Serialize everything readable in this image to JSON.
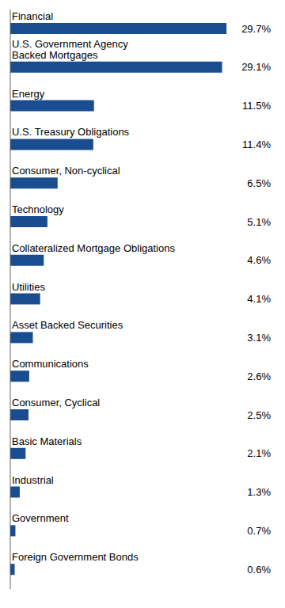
{
  "chart_data": {
    "type": "bar",
    "orientation": "horizontal",
    "categories": [
      "Financial",
      "U.S. Government Agency\nBacked Mortgages",
      "Energy",
      "U.S. Treasury Obligations",
      "Consumer, Non-cyclical",
      "Technology",
      "Collateralized Mortgage Obligations",
      "Utilities",
      "Asset Backed Securities",
      "Communications",
      "Consumer, Cyclical",
      "Basic Materials",
      "Industrial",
      "Government",
      "Foreign Government Bonds"
    ],
    "values": [
      29.7,
      29.1,
      11.5,
      11.4,
      6.5,
      5.1,
      4.6,
      4.1,
      3.1,
      2.6,
      2.5,
      2.1,
      1.3,
      0.7,
      0.6
    ],
    "value_labels": [
      "29.7%",
      "29.1%",
      "11.5%",
      "11.4%",
      "6.5%",
      "5.1%",
      "4.6%",
      "4.1%",
      "3.1%",
      "2.6%",
      "2.5%",
      "2.1%",
      "1.3%",
      "0.7%",
      "0.6%"
    ],
    "color": "#1a4d8f",
    "xlim": [
      0,
      36
    ],
    "tick_labels": false,
    "data_labels": true,
    "grid": false
  }
}
